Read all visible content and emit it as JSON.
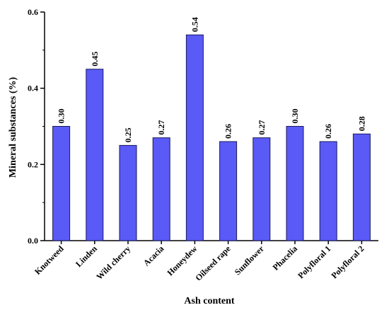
{
  "chart_data": {
    "type": "bar",
    "categories": [
      "Knotweed",
      "Linden",
      "Wild cherry",
      "Acacia",
      "Honeydew",
      "Oilseed rape",
      "Sunflower",
      "Phacelia",
      "Polyfloral 1",
      "Polyfloral 2"
    ],
    "values": [
      0.3,
      0.45,
      0.25,
      0.27,
      0.54,
      0.26,
      0.27,
      0.3,
      0.26,
      0.28
    ],
    "data_labels": [
      "0.30",
      "0.45",
      "0.25",
      "0.27",
      "0.54",
      "0.26",
      "0.27",
      "0.30",
      "0.26",
      "0.28"
    ],
    "xlabel": "Ash content",
    "ylabel": "Mineral substances (%)",
    "ylim": [
      0,
      0.6
    ],
    "yticks": [
      0.0,
      0.2,
      0.4,
      0.6
    ],
    "ytick_labels": [
      "0.0",
      "0.2",
      "0.4",
      "0.6"
    ],
    "grid": false,
    "legend": "none",
    "bar_color": "#5a5af7",
    "bar_edge_color": "#1a1a5a"
  }
}
